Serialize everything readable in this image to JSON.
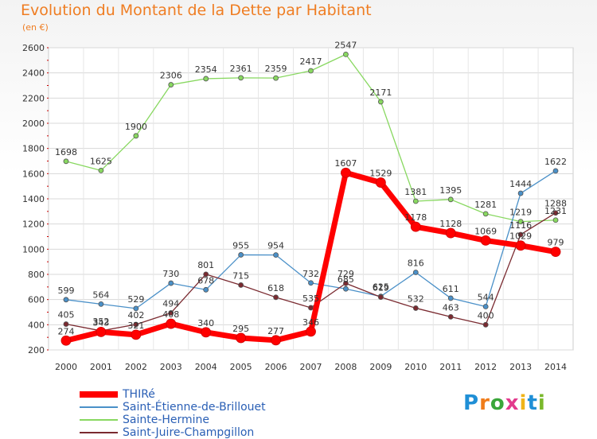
{
  "header": {
    "title": "Evolution du Montant de la Dette par Habitant",
    "unit": "(en €)"
  },
  "brand": {
    "letters": [
      "P",
      "r",
      "o",
      "x",
      "i",
      "t",
      "i"
    ],
    "colors": [
      "#1f8fd6",
      "#f07c1a",
      "#3aa63a",
      "#e23a8d",
      "#f0b418",
      "#1f8fd6",
      "#7ab92c"
    ]
  },
  "chart_data": {
    "type": "line",
    "title": "Evolution du Montant de la Dette par Habitant",
    "ylabel": "(en €)",
    "x": [
      2000,
      2001,
      2002,
      2003,
      2004,
      2005,
      2006,
      2007,
      2008,
      2009,
      2010,
      2011,
      2012,
      2013,
      2014
    ],
    "ylim": [
      200,
      2600
    ],
    "yticks": [
      200,
      400,
      600,
      800,
      1000,
      1200,
      1400,
      1600,
      1800,
      2000,
      2200,
      2400,
      2600
    ],
    "grid": true,
    "legend": "bottom-left",
    "series": [
      {
        "name": "THIRé",
        "color": "#ff0000",
        "values": [
          274,
          343,
          321,
          408,
          340,
          295,
          277,
          346,
          1607,
          1529,
          1178,
          1128,
          1069,
          1029,
          979
        ]
      },
      {
        "name": "Saint-Étienne-de-Brillouet",
        "color": "#4a90c8",
        "values": [
          599,
          564,
          529,
          730,
          678,
          955,
          954,
          732,
          685,
          625,
          816,
          611,
          544,
          1444,
          1622
        ]
      },
      {
        "name": "Sainte-Hermine",
        "color": "#88d860",
        "values": [
          1698,
          1625,
          1900,
          2306,
          2354,
          2361,
          2359,
          2417,
          2547,
          2171,
          1381,
          1395,
          1281,
          1219,
          1231
        ]
      },
      {
        "name": "Saint-Juire-Champgillon",
        "color": "#7a2a30",
        "values": [
          405,
          352,
          402,
          494,
          801,
          715,
          618,
          535,
          729,
          619,
          532,
          463,
          400,
          1116,
          1288
        ]
      }
    ]
  }
}
